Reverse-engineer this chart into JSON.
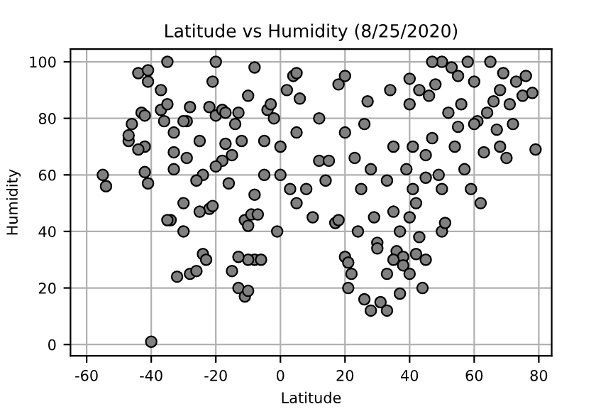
{
  "chart_data": {
    "type": "scatter",
    "title": "Latitude vs Humidity (8/25/2020)",
    "xlabel": "Latitude",
    "ylabel": "Humidity",
    "xlim": [
      -65,
      84
    ],
    "ylim": [
      -4,
      104.5
    ],
    "xticks": [
      -60,
      -40,
      -20,
      0,
      20,
      40,
      60,
      80
    ],
    "yticks": [
      0,
      20,
      40,
      60,
      80,
      100
    ],
    "grid": true,
    "marker": "circle",
    "series": [
      {
        "color": "#808080",
        "x": [
          -55,
          -54,
          -44,
          -40,
          -41,
          -41,
          -47,
          -47,
          -46,
          -43,
          -42,
          -42,
          -44,
          -42,
          -41,
          -37,
          -37,
          -36,
          -35,
          -35,
          -33,
          -33,
          -34,
          -35,
          -32,
          -30,
          -28,
          -26,
          -24,
          -23,
          -22,
          -21,
          -25,
          -28,
          -29,
          -29,
          -33,
          -30,
          -25,
          -24,
          -22,
          -21,
          -20,
          -20,
          -18,
          -17,
          -17,
          -16,
          -15,
          -14,
          -13,
          -12,
          -11,
          -10,
          -9,
          -8,
          -7,
          -8,
          -10,
          -13,
          -15,
          -13,
          -11,
          -10,
          -6,
          -5,
          -5,
          -4,
          -3,
          -2,
          -1,
          0,
          0,
          -8,
          -10,
          -18,
          -20,
          -26,
          -30,
          2,
          4,
          5,
          6,
          5,
          3,
          5,
          8,
          10,
          12,
          12,
          14,
          15,
          17,
          18,
          18,
          20,
          20,
          20,
          21,
          21,
          22,
          23,
          25,
          26,
          27,
          28,
          29,
          30,
          31,
          33,
          33,
          34,
          35,
          35,
          36,
          37,
          37,
          38,
          39,
          40,
          40,
          41,
          41,
          42,
          42,
          43,
          44,
          45,
          45,
          46,
          47,
          48,
          49,
          50,
          50,
          51,
          52,
          53,
          54,
          55,
          56,
          57,
          58,
          59,
          60,
          61,
          62,
          63,
          64,
          65,
          66,
          67,
          68,
          69,
          70,
          71,
          72,
          73,
          75,
          78,
          79,
          76,
          68,
          60,
          55,
          47,
          43,
          40,
          38,
          33,
          28,
          26,
          24,
          30,
          35,
          40,
          45,
          50
        ],
        "values": [
          60,
          56,
          96,
          1,
          97,
          93,
          72,
          74,
          78,
          82,
          81,
          70,
          69,
          61,
          57,
          90,
          83,
          79,
          85,
          100,
          75,
          62,
          44,
          44,
          24,
          40,
          25,
          26,
          32,
          30,
          48,
          49,
          47,
          84,
          79,
          66,
          68,
          79,
          72,
          60,
          84,
          93,
          100,
          81,
          83,
          82,
          71,
          57,
          67,
          78,
          82,
          72,
          44,
          42,
          46,
          53,
          46,
          30,
          30,
          20,
          26,
          31,
          17,
          19,
          30,
          72,
          60,
          83,
          85,
          80,
          40,
          70,
          60,
          98,
          88,
          65,
          63,
          58,
          50,
          90,
          95,
          96,
          87,
          75,
          55,
          50,
          55,
          45,
          65,
          80,
          58,
          65,
          43,
          44,
          92,
          95,
          75,
          31,
          20,
          29,
          25,
          66,
          55,
          78,
          86,
          62,
          45,
          36,
          15,
          25,
          58,
          90,
          70,
          47,
          33,
          40,
          18,
          31,
          62,
          85,
          94,
          70,
          55,
          50,
          32,
          38,
          20,
          59,
          67,
          88,
          73,
          92,
          60,
          100,
          40,
          43,
          82,
          98,
          70,
          77,
          85,
          62,
          100,
          55,
          93,
          79,
          50,
          68,
          82,
          100,
          86,
          76,
          90,
          96,
          66,
          85,
          78,
          93,
          88,
          89,
          69,
          95,
          70,
          78,
          95,
          100,
          90,
          45,
          28,
          12,
          12,
          16,
          40,
          34,
          30,
          25,
          30,
          55
        ]
      }
    ]
  }
}
